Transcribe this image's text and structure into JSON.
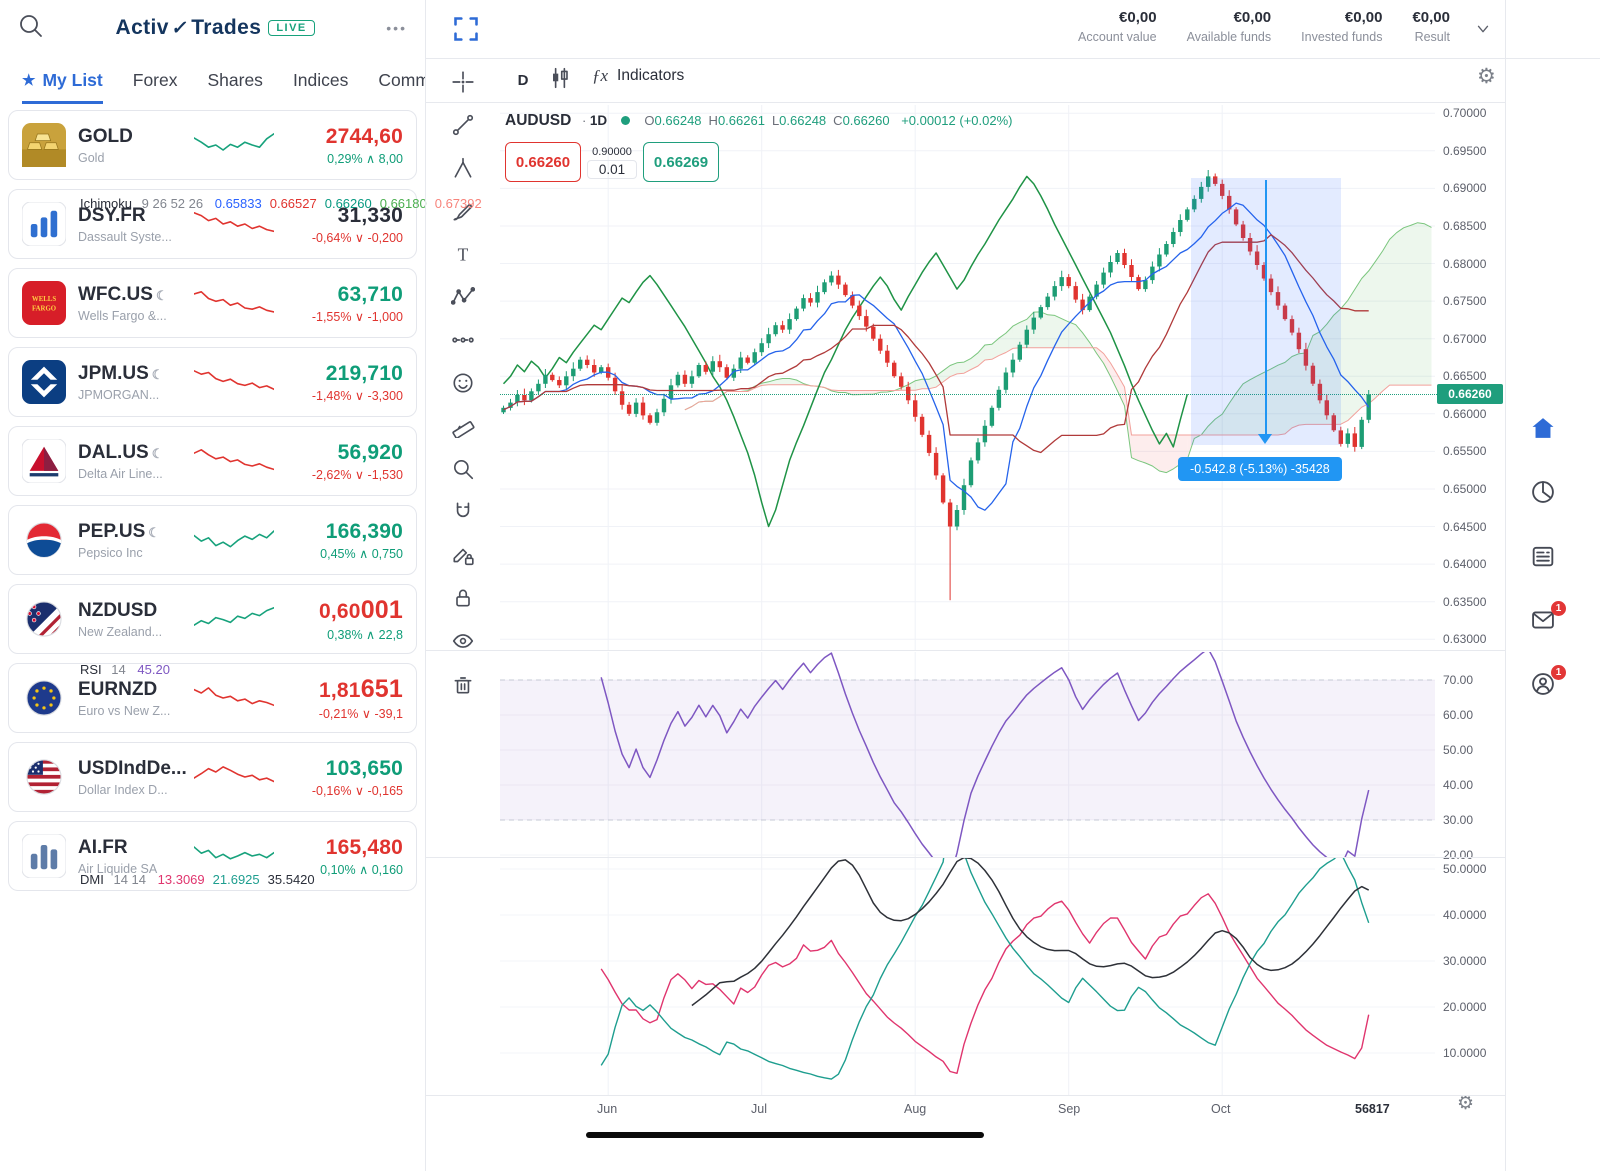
{
  "brand": {
    "logo_activ": "Activ",
    "logo_trades": "Trades",
    "live_badge": "LIVE",
    "menu_dots": "•••"
  },
  "account_bar": {
    "groups": [
      {
        "value": "€0,00",
        "label": "Account value"
      },
      {
        "value": "€0,00",
        "label": "Available funds"
      },
      {
        "value": "€0,00",
        "label": "Invested funds"
      },
      {
        "value": "€0,00",
        "label": "Result"
      }
    ]
  },
  "tabs": [
    {
      "label": "My List",
      "active": true
    },
    {
      "label": "Forex",
      "active": false
    },
    {
      "label": "Shares",
      "active": false
    },
    {
      "label": "Indices",
      "active": false
    },
    {
      "label": "Comm",
      "active": false
    }
  ],
  "watchlist": [
    {
      "symbol": "GOLD",
      "moon": false,
      "name": "Gold",
      "price": "2744,60",
      "price_big": "",
      "price_color": "red",
      "change": "0,29% ∧ 8,00",
      "change_color": "green",
      "icon": "gold",
      "spark_color": "#17a27c",
      "spark": [
        0.75,
        0.6,
        0.42,
        0.5,
        0.32,
        0.52,
        0.42,
        0.6,
        0.5,
        0.42,
        0.72,
        0.9
      ]
    },
    {
      "symbol": "DSY.FR",
      "moon": false,
      "name": "Dassault Syste...",
      "price": "31,330",
      "price_big": "",
      "price_color": "dark",
      "change": "-0,64% ∨ -0,200",
      "change_color": "red",
      "icon": "bars-blue",
      "spark_color": "#e0342f",
      "spark": [
        0.9,
        0.8,
        0.62,
        0.7,
        0.5,
        0.58,
        0.42,
        0.5,
        0.34,
        0.42,
        0.3,
        0.24
      ]
    },
    {
      "symbol": "WFC.US",
      "moon": true,
      "name": "Wells Fargo &...",
      "price": "63,710",
      "price_big": "",
      "price_color": "green",
      "change": "-1,55% ∨ -1,000",
      "change_color": "red",
      "icon": "wellsfargo",
      "spark_color": "#e0342f",
      "spark": [
        0.82,
        0.9,
        0.66,
        0.56,
        0.62,
        0.42,
        0.5,
        0.32,
        0.28,
        0.36,
        0.24,
        0.18
      ]
    },
    {
      "symbol": "JPM.US",
      "moon": true,
      "name": "JPMORGAN...",
      "price": "219,710",
      "price_big": "",
      "price_color": "green",
      "change": "-1,48% ∨ -3,300",
      "change_color": "red",
      "icon": "jpm",
      "spark_color": "#e0342f",
      "spark": [
        0.9,
        0.78,
        0.84,
        0.62,
        0.52,
        0.6,
        0.44,
        0.38,
        0.46,
        0.3,
        0.36,
        0.24
      ]
    },
    {
      "symbol": "DAL.US",
      "moon": true,
      "name": "Delta Air Line...",
      "price": "56,920",
      "price_big": "",
      "price_color": "green",
      "change": "-2,62% ∨ -1,530",
      "change_color": "red",
      "icon": "delta",
      "spark_color": "#e0342f",
      "spark": [
        0.78,
        0.9,
        0.72,
        0.58,
        0.64,
        0.48,
        0.54,
        0.38,
        0.32,
        0.4,
        0.28,
        0.2
      ]
    },
    {
      "symbol": "PEP.US",
      "moon": true,
      "name": "Pepsico Inc",
      "price": "166,390",
      "price_big": "",
      "price_color": "green",
      "change": "0,45% ∧ 0,750",
      "change_color": "green",
      "icon": "pepsi",
      "spark_color": "#17a27c",
      "spark": [
        0.66,
        0.46,
        0.58,
        0.3,
        0.42,
        0.26,
        0.48,
        0.64,
        0.52,
        0.7,
        0.58,
        0.82
      ]
    },
    {
      "symbol": "NZDUSD",
      "moon": false,
      "name": "New Zealand...",
      "price": "0,60",
      "price_big": "001",
      "price_color": "red",
      "change": "0,38% ∧ 22,8",
      "change_color": "green",
      "icon": "flag-nzus",
      "spark_color": "#17a27c",
      "spark": [
        0.28,
        0.44,
        0.34,
        0.55,
        0.48,
        0.38,
        0.6,
        0.52,
        0.7,
        0.62,
        0.8,
        0.9
      ]
    },
    {
      "symbol": "EURNZD",
      "moon": false,
      "name": "Euro vs New Z...",
      "price": "1,81",
      "price_big": "651",
      "price_color": "red",
      "change": "-0,21% ∨ -39,1",
      "change_color": "red",
      "icon": "flag-eu",
      "spark_color": "#e0342f",
      "spark": [
        0.8,
        0.68,
        0.86,
        0.6,
        0.5,
        0.56,
        0.4,
        0.46,
        0.3,
        0.4,
        0.34,
        0.24
      ]
    },
    {
      "symbol": "USDIndDe...",
      "moon": false,
      "name": "Dollar Index D...",
      "price": "103,650",
      "price_big": "",
      "price_color": "green",
      "change": "-0,16% ∨ -0,165",
      "change_color": "red",
      "icon": "flag-us",
      "spark_color": "#e0342f",
      "spark": [
        0.46,
        0.62,
        0.8,
        0.68,
        0.86,
        0.74,
        0.6,
        0.5,
        0.56,
        0.4,
        0.46,
        0.34
      ]
    },
    {
      "symbol": "AI.FR",
      "moon": false,
      "name": "Air Liquide SA",
      "price": "165,480",
      "price_big": "",
      "price_color": "red",
      "change": "0,10% ∧ 0,160",
      "change_color": "green",
      "icon": "bars-steel",
      "spark_color": "#17a27c",
      "spark": [
        0.82,
        0.6,
        0.7,
        0.44,
        0.56,
        0.4,
        0.5,
        0.62,
        0.5,
        0.56,
        0.44,
        0.62
      ]
    }
  ],
  "chart_toolbar": {
    "timeframe": "D",
    "indicators_label": "Indicators"
  },
  "legend": {
    "symbol": "AUDUSD",
    "sep": "·",
    "timeframe": "1D",
    "ohlc": [
      [
        "O",
        "0.66248"
      ],
      [
        "H",
        "0.66261"
      ],
      [
        "L",
        "0.66248"
      ],
      [
        "C",
        "0.66260"
      ]
    ],
    "change": "+0.00012 (+0.02%)"
  },
  "order_panel": {
    "sell": "0.66260",
    "spread_top": "0.90000",
    "spread": "0.01",
    "buy": "0.66269"
  },
  "ichimoku_row": {
    "label": "Ichimoku",
    "params": "9 26 52 26",
    "values": [
      {
        "text": "0.65833",
        "color": "#2962ff"
      },
      {
        "text": "0.66527",
        "color": "#e0342f"
      },
      {
        "text": "0.66260",
        "color": "#089981"
      },
      {
        "text": "0.66180",
        "color": "#4caf50"
      },
      {
        "text": "0.67392",
        "color": "#f7847c"
      }
    ]
  },
  "price_chip": "0.66260",
  "measure_tooltip": "-0.542.8 (-5.13%) -35428",
  "rsi_row": {
    "label": "RSI",
    "params": "14",
    "value": "45.20",
    "value_color": "#7e57c2"
  },
  "dmi_row": {
    "label": "DMI",
    "params": "14 14",
    "values": [
      {
        "text": "13.3069",
        "color": "#e0356e"
      },
      {
        "text": "21.6925",
        "color": "#1e9e8f"
      },
      {
        "text": "35.5420",
        "color": "#2a2e39"
      }
    ]
  },
  "bar_count": "56817",
  "tools": [
    "crosshair-icon",
    "trendline-icon",
    "pitchfork-icon",
    "brush-icon",
    "text-icon",
    "pattern-icon",
    "prediction-icon",
    "emoji-icon",
    "ruler-icon",
    "zoom-icon",
    "magnet-icon",
    "draw-lock-icon",
    "lock-icon",
    "eye-icon",
    "trash-icon"
  ],
  "right_rail": [
    {
      "icon": "home-icon",
      "active": true,
      "badge": ""
    },
    {
      "icon": "pie-icon",
      "active": false,
      "badge": ""
    },
    {
      "icon": "news-icon",
      "active": false,
      "badge": ""
    },
    {
      "icon": "mail-icon",
      "active": false,
      "badge": "1"
    },
    {
      "icon": "support-icon",
      "active": false,
      "badge": "1"
    }
  ],
  "chart_data": {
    "type": "candlestick",
    "symbol": "AUDUSD",
    "timeframe": "1D",
    "title": "AUDUSD · 1D with Ichimoku 9 26 52 26, RSI 14, DMI 14 14",
    "ylim": [
      0.63,
      0.7
    ],
    "y_ticks": [
      "0.70000",
      "0.69500",
      "0.69000",
      "0.68500",
      "0.68000",
      "0.67500",
      "0.67000",
      "0.66500",
      "0.66000",
      "0.65500",
      "0.65000",
      "0.64500",
      "0.64000",
      "0.63500",
      "0.63000"
    ],
    "rsi_ticks": [
      "70.00",
      "60.00",
      "50.00",
      "40.00",
      "30.00",
      "20.00"
    ],
    "dmi_ticks": [
      "50.0000",
      "40.0000",
      "30.0000",
      "20.0000",
      "10.0000"
    ],
    "x_labels": [
      {
        "label": "Jun",
        "index": 15
      },
      {
        "label": "Jul",
        "index": 37
      },
      {
        "label": "Aug",
        "index": 59
      },
      {
        "label": "Sep",
        "index": 81
      },
      {
        "label": "Oct",
        "index": 103
      }
    ],
    "slots": 134,
    "closes": [
      0.6608,
      0.6615,
      0.6625,
      0.6618,
      0.663,
      0.664,
      0.6652,
      0.6645,
      0.6638,
      0.665,
      0.666,
      0.6672,
      0.6665,
      0.6655,
      0.6662,
      0.6648,
      0.663,
      0.6612,
      0.66,
      0.6615,
      0.6598,
      0.6588,
      0.6602,
      0.662,
      0.6638,
      0.6652,
      0.664,
      0.665,
      0.6665,
      0.6656,
      0.667,
      0.6662,
      0.6648,
      0.666,
      0.6675,
      0.6668,
      0.6682,
      0.6694,
      0.6706,
      0.6718,
      0.6712,
      0.6726,
      0.674,
      0.6754,
      0.6748,
      0.6762,
      0.6775,
      0.6784,
      0.6772,
      0.6758,
      0.6744,
      0.673,
      0.6716,
      0.67,
      0.6684,
      0.6668,
      0.665,
      0.6636,
      0.6618,
      0.6596,
      0.6572,
      0.6548,
      0.6518,
      0.6482,
      0.645,
      0.6472,
      0.6505,
      0.6538,
      0.6562,
      0.6584,
      0.6608,
      0.6632,
      0.6655,
      0.6672,
      0.6692,
      0.6712,
      0.6728,
      0.6742,
      0.6756,
      0.677,
      0.6782,
      0.677,
      0.6752,
      0.6738,
      0.6756,
      0.6772,
      0.6788,
      0.6802,
      0.6814,
      0.6798,
      0.6782,
      0.6766,
      0.6778,
      0.6796,
      0.6812,
      0.6826,
      0.6842,
      0.6858,
      0.6872,
      0.6886,
      0.6902,
      0.6916,
      0.6906,
      0.689,
      0.6872,
      0.6852,
      0.6834,
      0.6816,
      0.6798,
      0.678,
      0.6762,
      0.6744,
      0.6726,
      0.6708,
      0.6686,
      0.6664,
      0.664,
      0.6618,
      0.6598,
      0.6578,
      0.656,
      0.6574,
      0.6556,
      0.6592,
      0.6626
    ],
    "spike": {
      "index": 64,
      "low": 0.6352
    },
    "last_price": 0.6626,
    "overlays": {
      "ichimoku_params": [
        9,
        26,
        52,
        26
      ]
    },
    "indicators": {
      "rsi_period": 14,
      "rsi_value": 45.2,
      "dmi_period": 14,
      "di_plus": 13.3069,
      "di_minus": 21.6925,
      "adx": 35.542
    },
    "measure": {
      "start_index": 99,
      "end_index": 120,
      "price_top": 0.6914,
      "price_bottom": 0.6559
    }
  }
}
